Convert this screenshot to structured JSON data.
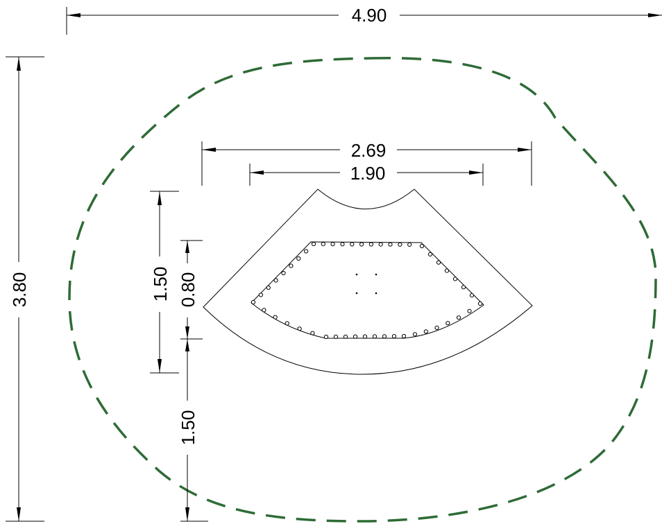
{
  "dimensions": {
    "overall_width": "4.90",
    "overall_height": "3.80",
    "bench_outer_width": "2.69",
    "bench_inner_width": "1.90",
    "bench_depth": "1.50",
    "seat_depth": "0.80",
    "front_clearance": "1.50"
  },
  "colors": {
    "safety_zone": "#2e6b36",
    "line": "#000000",
    "background": "#ffffff"
  }
}
